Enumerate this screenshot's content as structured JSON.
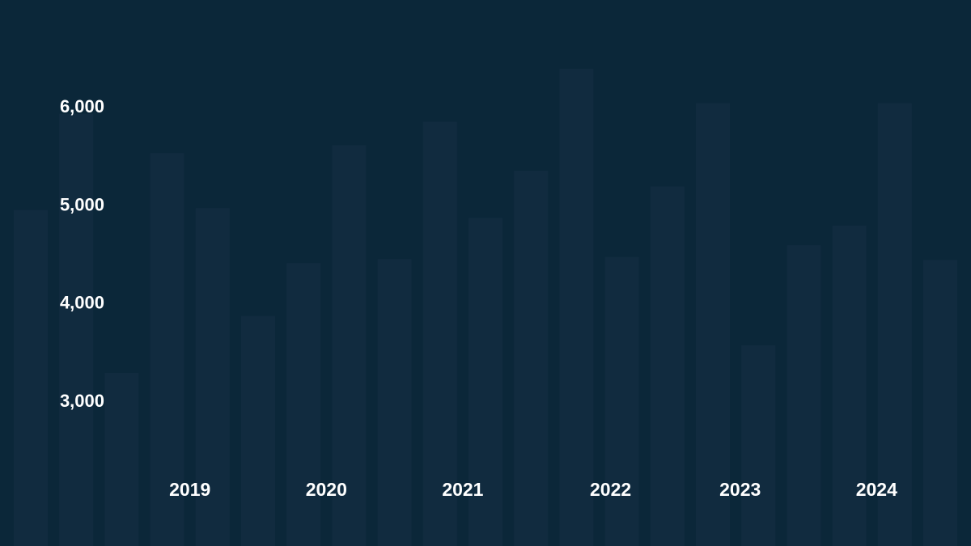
{
  "chart_data": {
    "type": "bar",
    "title": "",
    "xlabel": "",
    "ylabel": "",
    "legend": "none",
    "grid": false,
    "colors": {
      "background": "#0b2739",
      "bar": "#112b3f",
      "text": "#ffffff"
    },
    "values": [
      4940,
      5920,
      3280,
      5520,
      4960,
      3860,
      4400,
      5600,
      4440,
      5840,
      4860,
      5340,
      6380,
      4460,
      5180,
      6030,
      3560,
      4580,
      4780,
      6030,
      4430
    ],
    "y_ticks": [
      "6,000",
      "5,000",
      "4,000",
      "3,000"
    ],
    "y_tick_values": [
      6000,
      5000,
      4000,
      3000
    ],
    "x_labels": [
      "2019",
      "2020",
      "2021",
      "2022",
      "2023",
      "2024"
    ],
    "x_label_bar_positions": [
      3.5,
      6.5,
      9.5,
      12.75,
      15.6,
      18.6
    ]
  }
}
